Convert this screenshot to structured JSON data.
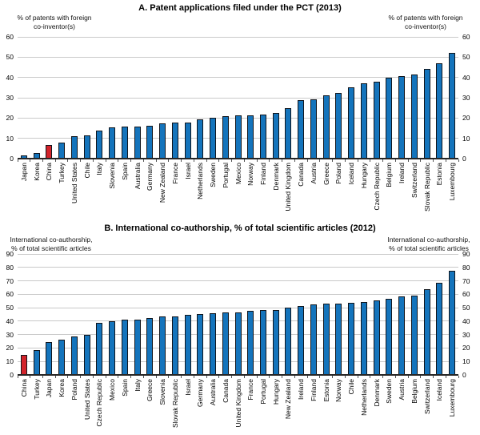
{
  "chart_data": [
    {
      "type": "bar",
      "panel": "A",
      "title": "A. Patent applications filed under the PCT (2013)",
      "y_axis_label": [
        "% of patents with foreign",
        "co-inventor(s)"
      ],
      "ylim": [
        0,
        60
      ],
      "yticks": [
        0,
        10,
        20,
        30,
        40,
        50,
        60
      ],
      "grid": true,
      "legend_position": "none",
      "bar_color": "#1474bc",
      "highlight_color": "#d2232a",
      "highlight_category": "China",
      "categories": [
        "Japan",
        "Korea",
        "China",
        "Turkey",
        "United States",
        "Chile",
        "Italy",
        "Slovenia",
        "Spain",
        "Australia",
        "Germany",
        "New Zealand",
        "France",
        "Israel",
        "Netherlands",
        "Sweden",
        "Portugal",
        "Mexico",
        "Norway",
        "Finland",
        "Denmark",
        "United Kingdom",
        "Canada",
        "Austria",
        "Greece",
        "Poland",
        "Iceland",
        "Hungary",
        "Czech Republic",
        "Belgium",
        "Ireland",
        "Switzerland",
        "Slovak Republic",
        "Estonia",
        "Luxembourg"
      ],
      "values": [
        1.7,
        2.9,
        6.6,
        7.9,
        11.2,
        11.5,
        14,
        15.3,
        15.7,
        15.7,
        16.1,
        17.4,
        17.9,
        17.9,
        19.3,
        20.3,
        21,
        21.2,
        21.4,
        21.8,
        22.4,
        24.7,
        29,
        29.2,
        31.3,
        32.5,
        35.2,
        37.2,
        37.8,
        39.8,
        40.8,
        41.3,
        44.2,
        47,
        52
      ]
    },
    {
      "type": "bar",
      "panel": "B",
      "title": "B. International co-authorship, % of total scientific articles (2012)",
      "y_axis_label": [
        "International co-authorship,",
        "% of total scientific articles"
      ],
      "ylim": [
        0,
        90
      ],
      "yticks": [
        0,
        10,
        20,
        30,
        40,
        50,
        60,
        70,
        80,
        90
      ],
      "grid": true,
      "legend_position": "none",
      "bar_color": "#1474bc",
      "highlight_color": "#d2232a",
      "highlight_category": "China",
      "categories": [
        "China",
        "Turkey",
        "Japan",
        "Korea",
        "Poland",
        "United States",
        "Czech Republic",
        "Mexico",
        "Spain",
        "Italy",
        "Greece",
        "Slovenia",
        "Slovak Republic",
        "Israel",
        "Germany",
        "Australia",
        "Canada",
        "United Kingdom",
        "France",
        "Portugal",
        "Hungary",
        "New Zealand",
        "Ireland",
        "Finland",
        "Estonia",
        "Norway",
        "Chile",
        "Netherlands",
        "Denmark",
        "Sweden",
        "Austria",
        "Belgium",
        "Switzerland",
        "Iceland",
        "Luxembourg"
      ],
      "values": [
        15,
        18.5,
        24.5,
        26,
        28.5,
        30,
        38.5,
        40,
        41,
        41.3,
        42.5,
        43.8,
        43.8,
        45,
        45.5,
        46,
        46.2,
        46.3,
        47.8,
        48,
        48.2,
        49.8,
        51.2,
        52.2,
        52.8,
        53.2,
        53.8,
        54,
        55.2,
        56.4,
        58.3,
        59.3,
        63.8,
        68.8,
        77.5
      ]
    }
  ]
}
